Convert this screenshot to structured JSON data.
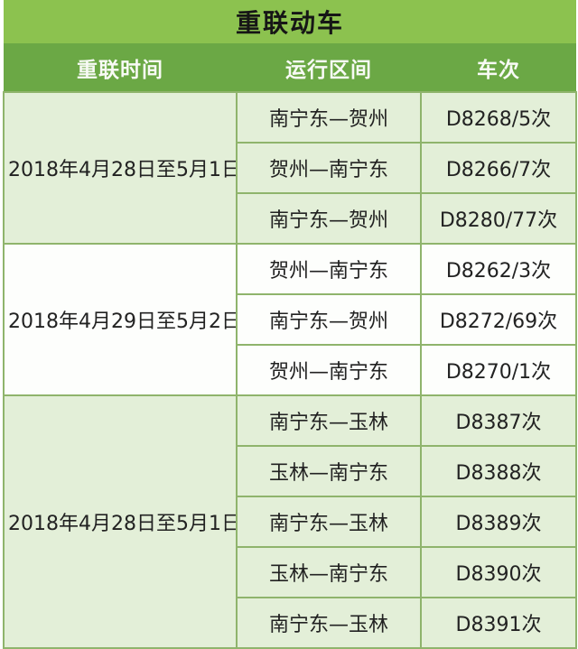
{
  "title": "重联动车",
  "table": {
    "columns": [
      "重联时间",
      "运行区间",
      "车次"
    ],
    "groups": [
      {
        "period": "2018年4月28日至5月1日",
        "rows": [
          {
            "route": "南宁东—贺州",
            "train": "D8268/5次"
          },
          {
            "route": "贺州—南宁东",
            "train": "D8266/7次"
          },
          {
            "route": "南宁东—贺州",
            "train": "D8280/77次"
          }
        ]
      },
      {
        "period": "2018年4月29日至5月2日",
        "rows": [
          {
            "route": "贺州—南宁东",
            "train": "D8262/3次"
          },
          {
            "route": "南宁东—贺州",
            "train": "D8272/69次"
          },
          {
            "route": "贺州—南宁东",
            "train": "D8270/1次"
          }
        ]
      },
      {
        "period": "2018年4月28日至5月1日",
        "rows": [
          {
            "route": "南宁东—玉林",
            "train": "D8387次"
          },
          {
            "route": "玉林—南宁东",
            "train": "D8388次"
          },
          {
            "route": "南宁东—玉林",
            "train": "D8389次"
          },
          {
            "route": "玉林—南宁东",
            "train": "D8390次"
          },
          {
            "route": "南宁东—玉林",
            "train": "D8391次"
          }
        ]
      }
    ]
  },
  "chart_data": {
    "type": "table",
    "title": "重联动车",
    "columns": [
      "重联时间",
      "运行区间",
      "车次"
    ],
    "rows": [
      [
        "2018年4月28日至5月1日",
        "南宁东—贺州",
        "D8268/5次"
      ],
      [
        "2018年4月28日至5月1日",
        "贺州—南宁东",
        "D8266/7次"
      ],
      [
        "2018年4月28日至5月1日",
        "南宁东—贺州",
        "D8280/77次"
      ],
      [
        "2018年4月29日至5月2日",
        "贺州—南宁东",
        "D8262/3次"
      ],
      [
        "2018年4月29日至5月2日",
        "南宁东—贺州",
        "D8272/69次"
      ],
      [
        "2018年4月29日至5月2日",
        "贺州—南宁东",
        "D8270/1次"
      ],
      [
        "2018年4月28日至5月1日",
        "南宁东—玉林",
        "D8387次"
      ],
      [
        "2018年4月28日至5月1日",
        "玉林—南宁东",
        "D8388次"
      ],
      [
        "2018年4月28日至5月1日",
        "南宁东—玉林",
        "D8389次"
      ],
      [
        "2018年4月28日至5月1日",
        "玉林—南宁东",
        "D8390次"
      ],
      [
        "2018年4月28日至5月1日",
        "南宁东—玉林",
        "D8391次"
      ]
    ]
  },
  "colors": {
    "title_green": "#8cc24f",
    "header_green": "#6ba845",
    "row_light_green": "#e3efd8",
    "row_white": "#fdfefc",
    "border_green": "#8fb46c"
  }
}
